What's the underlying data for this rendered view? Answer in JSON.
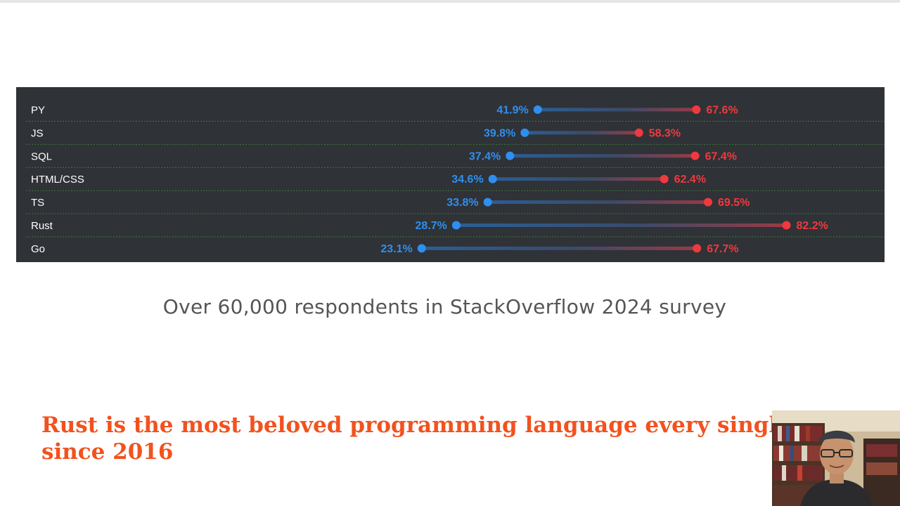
{
  "chart_data": {
    "type": "dumbbell",
    "categories": [
      "PY",
      "JS",
      "SQL",
      "HTML/CSS",
      "TS",
      "Rust",
      "Go"
    ],
    "series": [
      {
        "values": [
          41.9,
          39.8,
          37.4,
          34.6,
          33.8,
          28.7,
          23.1
        ],
        "labels": [
          "41.9%",
          "39.8%",
          "37.4%",
          "34.6%",
          "33.8%",
          "28.7%",
          "23.1%"
        ],
        "color": "#2f8ff0"
      },
      {
        "values": [
          67.6,
          58.3,
          67.4,
          62.4,
          69.5,
          82.2,
          67.7
        ],
        "labels": [
          "67.6%",
          "58.3%",
          "67.4%",
          "62.4%",
          "69.5%",
          "82.2%",
          "67.7%"
        ],
        "color": "#f0393f"
      }
    ],
    "grid": true
  },
  "caption": "Over 60,000 respondents in StackOverflow 2024 survey",
  "headline": "Rust is the most beloved programming language every single\nsince 2016",
  "colors": {
    "panel_bg": "#2f3236",
    "label_text": "#ffffff",
    "low_series": "#2f8ff0",
    "high_series": "#f0393f",
    "headline": "#f2521e",
    "grid": "#3f7a3a"
  }
}
